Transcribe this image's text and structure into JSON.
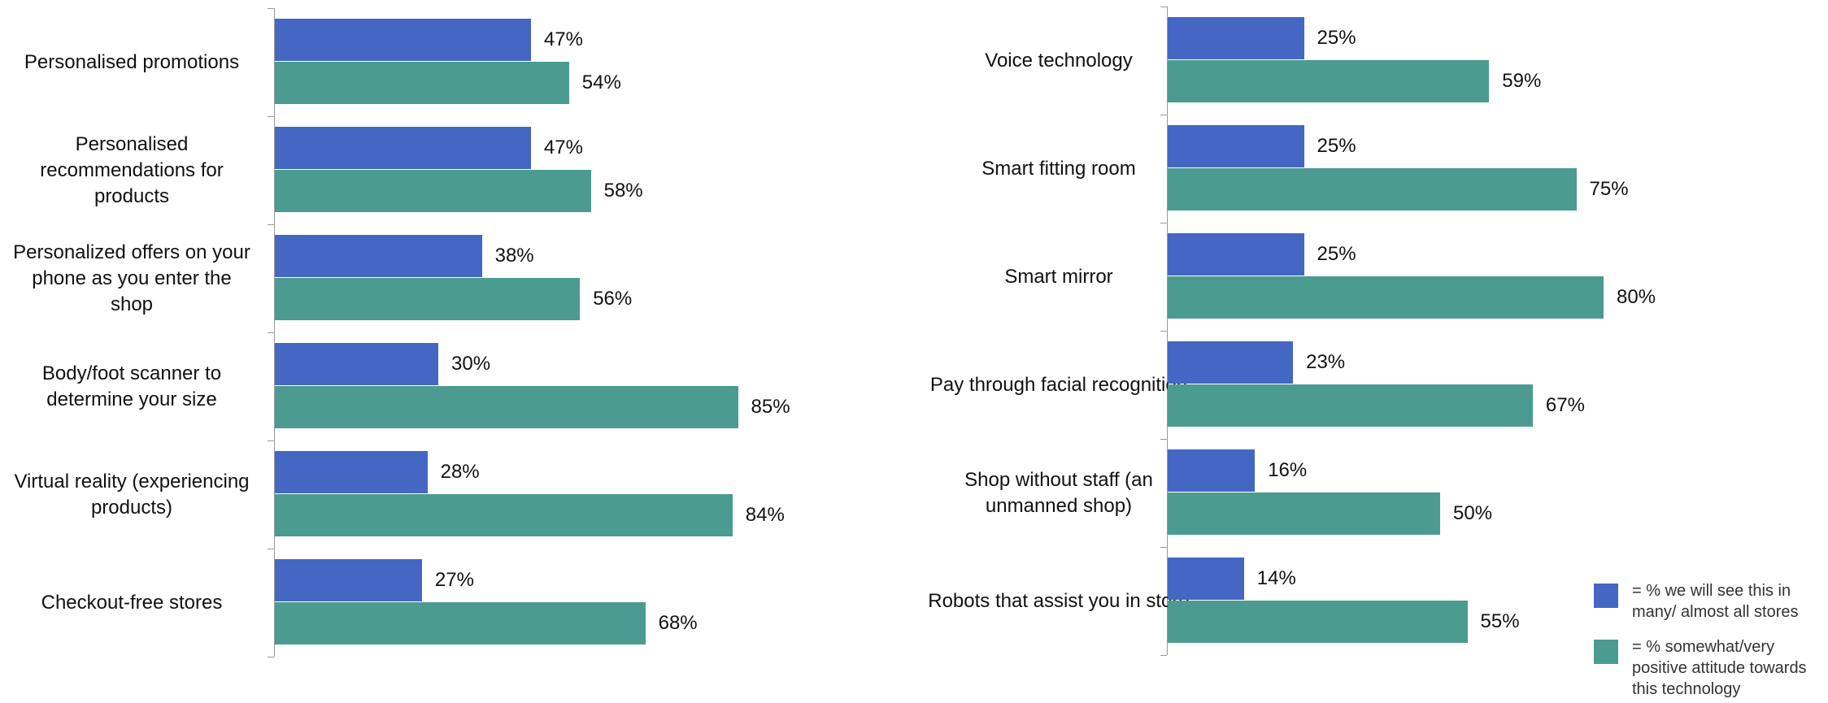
{
  "chart_data": [
    {
      "type": "bar",
      "orientation": "horizontal",
      "xlim": [
        0,
        100
      ],
      "legend": "lower right",
      "categories": [
        "Personalised promotions",
        "Personalised recommendations for products",
        "Personalized offers on your phone as you enter the shop",
        "Body/foot scanner to determine your size",
        "Virtual reality (experiencing products)",
        "Checkout-free stores"
      ],
      "series": [
        {
          "name": "= % we will see this in many/ almost all stores",
          "color": "#4467c3",
          "values": [
            47,
            47,
            38,
            30,
            28,
            27
          ],
          "value_labels": [
            "47%",
            "47%",
            "38%",
            "30%",
            "28%",
            "27%"
          ]
        },
        {
          "name": "= % somewhat/very positive attitude towards this technology",
          "color": "#4b9b90",
          "values": [
            54,
            58,
            56,
            85,
            84,
            68
          ],
          "value_labels": [
            "54%",
            "58%",
            "56%",
            "85%",
            "84%",
            "68%"
          ]
        }
      ]
    },
    {
      "type": "bar",
      "orientation": "horizontal",
      "xlim": [
        0,
        100
      ],
      "categories": [
        "Voice technology",
        "Smart fitting room",
        "Smart mirror",
        "Pay through facial recognition",
        "Shop without staff (an unmanned shop)",
        "Robots that assist you in store"
      ],
      "series": [
        {
          "color": "#4467c3",
          "values": [
            25,
            25,
            25,
            23,
            16,
            14
          ],
          "value_labels": [
            "25%",
            "25%",
            "25%",
            "23%",
            "16%",
            "14%"
          ]
        },
        {
          "color": "#4b9b90",
          "values": [
            59,
            75,
            80,
            67,
            50,
            55
          ],
          "value_labels": [
            "59%",
            "75%",
            "80%",
            "67%",
            "50%",
            "55%"
          ]
        }
      ]
    }
  ]
}
